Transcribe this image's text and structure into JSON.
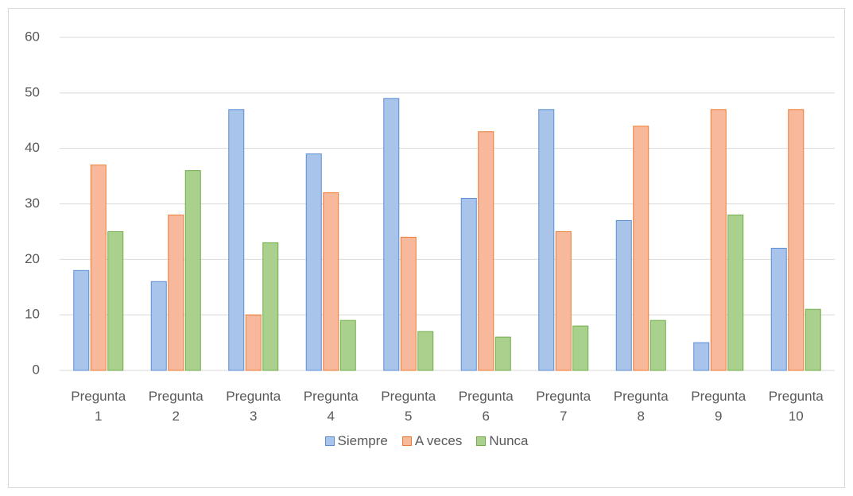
{
  "chart_data": {
    "type": "bar",
    "categories": [
      "Pregunta 1",
      "Pregunta 2",
      "Pregunta 3",
      "Pregunta 4",
      "Pregunta 5",
      "Pregunta 6",
      "Pregunta 7",
      "Pregunta 8",
      "Pregunta 9",
      "Pregunta 10"
    ],
    "series": [
      {
        "name": "Siempre",
        "color": "#5b8fd4",
        "fill": "#a9c4eb",
        "values": [
          18,
          16,
          47,
          39,
          49,
          31,
          47,
          27,
          5,
          22
        ]
      },
      {
        "name": "A veces",
        "color": "#ed7d31",
        "fill": "#f7b89b",
        "values": [
          37,
          28,
          10,
          32,
          24,
          43,
          25,
          44,
          47,
          47
        ]
      },
      {
        "name": "Nunca",
        "color": "#70ad47",
        "fill": "#aad08e",
        "values": [
          25,
          36,
          23,
          9,
          7,
          6,
          8,
          9,
          28,
          11
        ]
      }
    ],
    "ylim": [
      0,
      60
    ],
    "yticks": [
      0,
      10,
      20,
      30,
      40,
      50,
      60
    ],
    "grid": true,
    "legend": "bottom"
  }
}
